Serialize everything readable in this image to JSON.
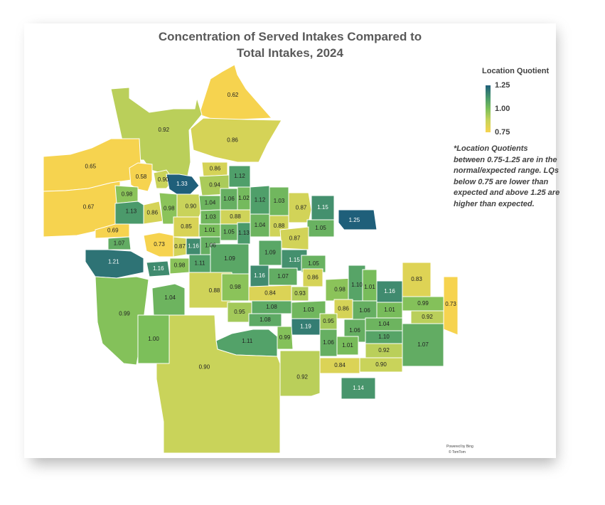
{
  "title_line1": "Concentration of Served Intakes Compared to",
  "title_line2": "Total Intakes, 2024",
  "legend": {
    "title": "Location Quotient",
    "max_label": "1.25",
    "mid_label": "1.00",
    "min_label": "0.75",
    "colors": {
      "low": "#f6d34f",
      "mid": "#7cbf5a",
      "high": "#1f5f7a"
    }
  },
  "note": "*Location Quotients between 0.75-1.25 are in the normal/expected range. LQs below 0.75 are lower than expected and above 1.25 are higher than expected.",
  "attribution": {
    "line1": "Powered by Bing",
    "line2": "© TomTom"
  },
  "regions": [
    {
      "id": "r1",
      "value": "0.62"
    },
    {
      "id": "r2",
      "value": "0.92"
    },
    {
      "id": "r3",
      "value": "0.86"
    },
    {
      "id": "r4",
      "value": "0.65"
    },
    {
      "id": "r5",
      "value": "0.67"
    },
    {
      "id": "r6",
      "value": "0.58"
    },
    {
      "id": "r7",
      "value": "0.90"
    },
    {
      "id": "r8",
      "value": "1.33"
    },
    {
      "id": "r9",
      "value": "0.86"
    },
    {
      "id": "r10",
      "value": "1.12"
    },
    {
      "id": "r11",
      "value": "0.94"
    },
    {
      "id": "r12",
      "value": "0.98"
    },
    {
      "id": "r13",
      "value": "1.13"
    },
    {
      "id": "r14",
      "value": "0.86"
    },
    {
      "id": "r15",
      "value": "0.98"
    },
    {
      "id": "r16",
      "value": "0.90"
    },
    {
      "id": "r17",
      "value": "1.04"
    },
    {
      "id": "r18",
      "value": "1.06"
    },
    {
      "id": "r19",
      "value": "1.02"
    },
    {
      "id": "r20",
      "value": "1.12"
    },
    {
      "id": "r21",
      "value": "1.03"
    },
    {
      "id": "r22",
      "value": "0.87"
    },
    {
      "id": "r23",
      "value": "1.15"
    },
    {
      "id": "r24",
      "value": "1.25"
    },
    {
      "id": "r25",
      "value": "0.69"
    },
    {
      "id": "r26",
      "value": "1.07"
    },
    {
      "id": "r27",
      "value": "0.73"
    },
    {
      "id": "r28",
      "value": "0.85"
    },
    {
      "id": "r29",
      "value": "1.03"
    },
    {
      "id": "r30",
      "value": "0.88"
    },
    {
      "id": "r31",
      "value": "1.01"
    },
    {
      "id": "r32",
      "value": "1.05"
    },
    {
      "id": "r33",
      "value": "1.13"
    },
    {
      "id": "r34",
      "value": "1.04"
    },
    {
      "id": "r35",
      "value": "0.88"
    },
    {
      "id": "r36",
      "value": "1.05"
    },
    {
      "id": "r37",
      "value": "0.87"
    },
    {
      "id": "r38",
      "value": "1.16"
    },
    {
      "id": "r39",
      "value": "1.06"
    },
    {
      "id": "r40",
      "value": "0.87"
    },
    {
      "id": "r41",
      "value": "1.09"
    },
    {
      "id": "r42",
      "value": "1.21"
    },
    {
      "id": "r43",
      "value": "1.16"
    },
    {
      "id": "r44",
      "value": "0.98"
    },
    {
      "id": "r45",
      "value": "1.11"
    },
    {
      "id": "r46",
      "value": "1.09"
    },
    {
      "id": "r47",
      "value": "1.15"
    },
    {
      "id": "r48",
      "value": "1.05"
    },
    {
      "id": "r49",
      "value": "1.16"
    },
    {
      "id": "r50",
      "value": "1.07"
    },
    {
      "id": "r51",
      "value": "0.86"
    },
    {
      "id": "r52",
      "value": "0.99"
    },
    {
      "id": "r53",
      "value": "0.88"
    },
    {
      "id": "r54",
      "value": "1.04"
    },
    {
      "id": "r55",
      "value": "0.98"
    },
    {
      "id": "r56",
      "value": "0.84"
    },
    {
      "id": "r57",
      "value": "0.93"
    },
    {
      "id": "r58",
      "value": "0.98"
    },
    {
      "id": "r59",
      "value": "1.10"
    },
    {
      "id": "r60",
      "value": "1.01"
    },
    {
      "id": "r61",
      "value": "1.16"
    },
    {
      "id": "r62",
      "value": "0.83"
    },
    {
      "id": "r63",
      "value": "0.73"
    },
    {
      "id": "r64",
      "value": "1.00"
    },
    {
      "id": "r65",
      "value": "0.95"
    },
    {
      "id": "r66",
      "value": "1.08"
    },
    {
      "id": "r67",
      "value": "1.08"
    },
    {
      "id": "r68",
      "value": "1.03"
    },
    {
      "id": "r69",
      "value": "0.86"
    },
    {
      "id": "r70",
      "value": "1.06"
    },
    {
      "id": "r71",
      "value": "1.01"
    },
    {
      "id": "r72",
      "value": "0.99"
    },
    {
      "id": "r73",
      "value": "0.92"
    },
    {
      "id": "r74",
      "value": "1.19"
    },
    {
      "id": "r75",
      "value": "0.95"
    },
    {
      "id": "r76",
      "value": "1.06"
    },
    {
      "id": "r77",
      "value": "1.04"
    },
    {
      "id": "r78",
      "value": "1.10"
    },
    {
      "id": "r79",
      "value": "1.11"
    },
    {
      "id": "r80",
      "value": "0.99"
    },
    {
      "id": "r81",
      "value": "1.06"
    },
    {
      "id": "r82",
      "value": "1.01"
    },
    {
      "id": "r83",
      "value": "0.92"
    },
    {
      "id": "r84",
      "value": "1.07"
    },
    {
      "id": "r85",
      "value": "0.90"
    },
    {
      "id": "r86",
      "value": "0.84"
    },
    {
      "id": "r87",
      "value": "0.92"
    },
    {
      "id": "r88",
      "value": "0.90"
    },
    {
      "id": "r89",
      "value": "1.14"
    }
  ]
}
